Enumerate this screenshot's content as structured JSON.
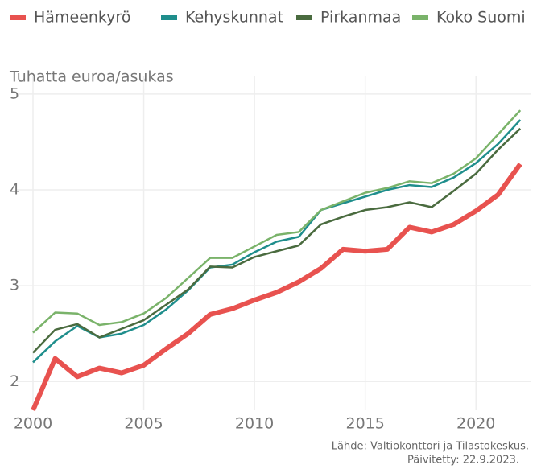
{
  "chart_data": {
    "type": "line",
    "y_label": "Tuhatta euroa/asukas",
    "caption": [
      "Lähde: Valtiokonttori ja Tilastokeskus.",
      "Päivitetty: 22.9.2023."
    ],
    "x": [
      2000,
      2001,
      2002,
      2003,
      2004,
      2005,
      2006,
      2007,
      2008,
      2009,
      2010,
      2011,
      2012,
      2013,
      2014,
      2015,
      2016,
      2017,
      2018,
      2019,
      2020,
      2021,
      2022
    ],
    "series": [
      {
        "name": "Hämeenkyrö",
        "color": "#e8524f",
        "width": 6,
        "values": [
          1.7,
          2.24,
          2.05,
          2.14,
          2.09,
          2.17,
          2.34,
          2.5,
          2.7,
          2.76,
          2.85,
          2.93,
          3.04,
          3.18,
          3.38,
          3.36,
          3.38,
          3.61,
          3.56,
          3.64,
          3.78,
          3.95,
          4.27
        ]
      },
      {
        "name": "Kehyskunnat",
        "color": "#1f8e8c",
        "width": 2.5,
        "values": [
          2.2,
          2.42,
          2.58,
          2.46,
          2.5,
          2.59,
          2.75,
          2.95,
          3.19,
          3.22,
          3.35,
          3.46,
          3.51,
          3.79,
          3.86,
          3.93,
          4.0,
          4.05,
          4.03,
          4.13,
          4.28,
          4.48,
          4.73
        ]
      },
      {
        "name": "Pirkanmaa",
        "color": "#4a6b3f",
        "width": 2.5,
        "values": [
          2.3,
          2.54,
          2.6,
          2.46,
          2.55,
          2.64,
          2.8,
          2.96,
          3.2,
          3.19,
          3.3,
          3.36,
          3.42,
          3.64,
          3.72,
          3.79,
          3.82,
          3.87,
          3.82,
          3.99,
          4.17,
          4.42,
          4.64
        ]
      },
      {
        "name": "Koko Suomi",
        "color": "#7ab36a",
        "width": 2.5,
        "values": [
          2.51,
          2.72,
          2.71,
          2.59,
          2.62,
          2.71,
          2.87,
          3.08,
          3.29,
          3.29,
          3.41,
          3.53,
          3.56,
          3.79,
          3.88,
          3.97,
          4.02,
          4.09,
          4.07,
          4.17,
          4.33,
          4.58,
          4.83
        ]
      }
    ],
    "xlim": [
      2000,
      2022.5
    ],
    "xticks": [
      2000,
      2005,
      2010,
      2015,
      2020
    ],
    "ylim": [
      1.7,
      5.1
    ],
    "yticks": [
      2,
      3,
      4,
      5
    ],
    "grid": true,
    "legend": "top"
  }
}
